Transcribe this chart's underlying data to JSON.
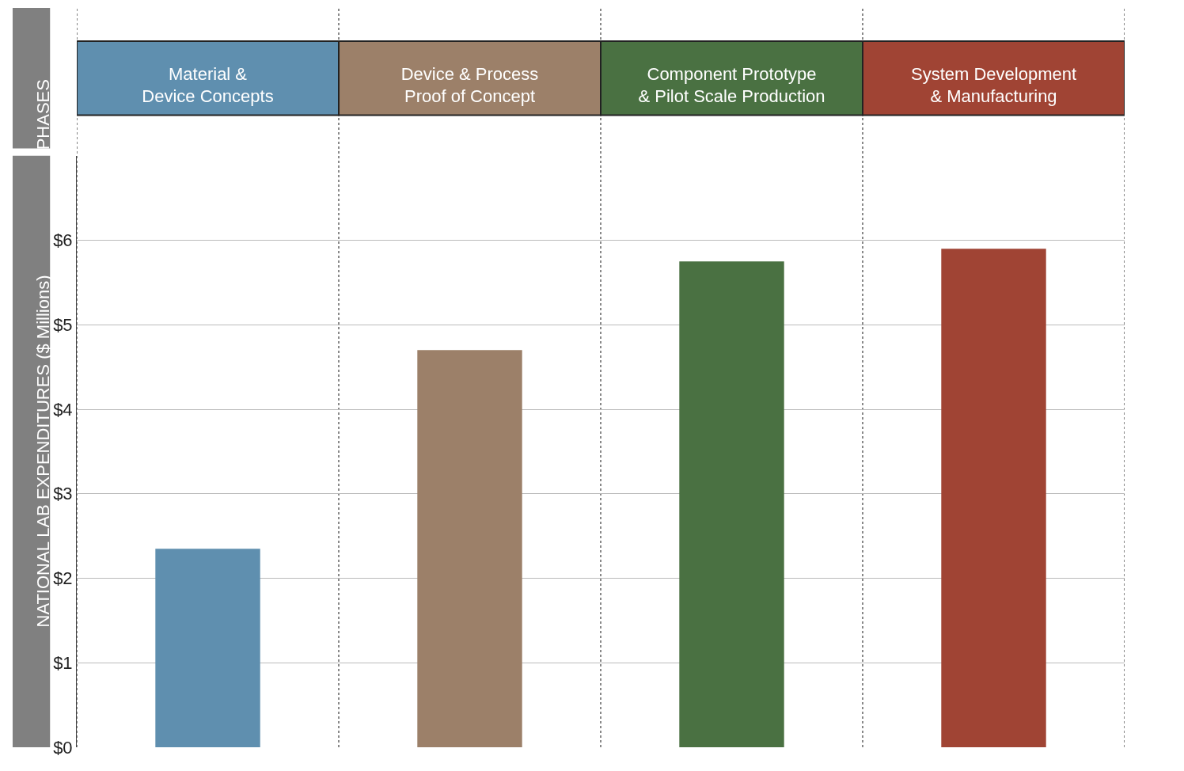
{
  "chart_data": {
    "type": "bar",
    "annotations": [
      "PHASES"
    ],
    "ylabel": "NATIONAL LAB EXPENDITURES ($ Millions)",
    "categories": [
      "Material &\nDevice Concepts",
      "Device & Process\nProof of Concept",
      "Component Prototype\n& Pilot Scale Production",
      "System Development\n& Manufacturing"
    ],
    "values": [
      2.35,
      4.7,
      5.75,
      5.9
    ],
    "colors": [
      "#5f8faf",
      "#9c8069",
      "#4a7142",
      "#a04434"
    ],
    "ylim": [
      0,
      7
    ],
    "yticks": [
      {
        "value": 0,
        "label": "$0"
      },
      {
        "value": 1,
        "label": "$1"
      },
      {
        "value": 2,
        "label": "$2"
      },
      {
        "value": 3,
        "label": "$3"
      },
      {
        "value": 4,
        "label": "$4"
      },
      {
        "value": 5,
        "label": "$5"
      },
      {
        "value": 6,
        "label": "$6"
      }
    ],
    "grid": true,
    "legend": false
  }
}
